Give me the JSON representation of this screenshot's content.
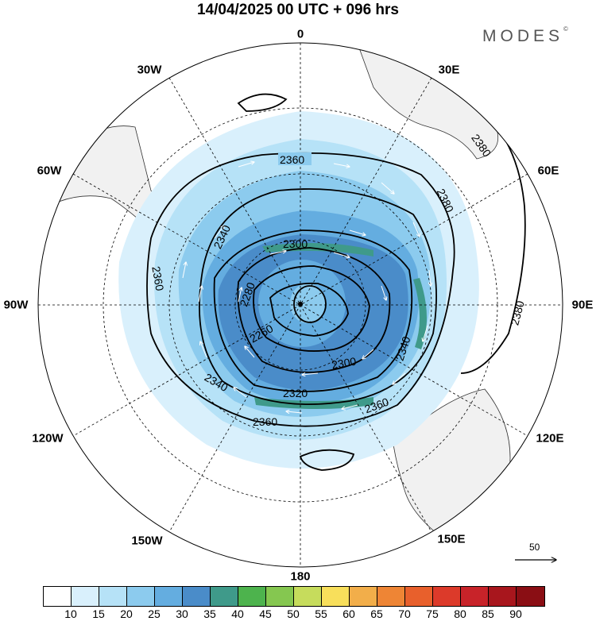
{
  "title": "14/04/2025  00 UTC  + 096 hrs",
  "brand": {
    "name": "MODES",
    "mark": "©"
  },
  "longitude_labels": [
    "0",
    "30E",
    "60E",
    "90E",
    "120E",
    "150E",
    "180",
    "150W",
    "120W",
    "90W",
    "60W",
    "30W"
  ],
  "contour_labels": [
    "2260",
    "2280",
    "2300",
    "2320",
    "2340",
    "2360",
    "2380"
  ],
  "colorbar": {
    "ticks": [
      "10",
      "15",
      "20",
      "25",
      "30",
      "35",
      "40",
      "45",
      "50",
      "55",
      "60",
      "65",
      "70",
      "75",
      "80",
      "85",
      "90"
    ],
    "colors": [
      "#ffffff",
      "#d9f0fc",
      "#b6e2f7",
      "#8ccbee",
      "#64ade0",
      "#4a8cc9",
      "#3f9a8a",
      "#4db34d",
      "#85c750",
      "#c6dc5c",
      "#f8df5b",
      "#f2ae4a",
      "#ee8535",
      "#e8602c",
      "#dc3a2a",
      "#c82329",
      "#a8161d",
      "#8a0e14"
    ]
  },
  "reference_vector": {
    "value": "50"
  },
  "colors": {
    "land": "#f1f1f1",
    "contour": "#000000",
    "graticule": "#000000",
    "arrow": "#ffffff"
  }
}
